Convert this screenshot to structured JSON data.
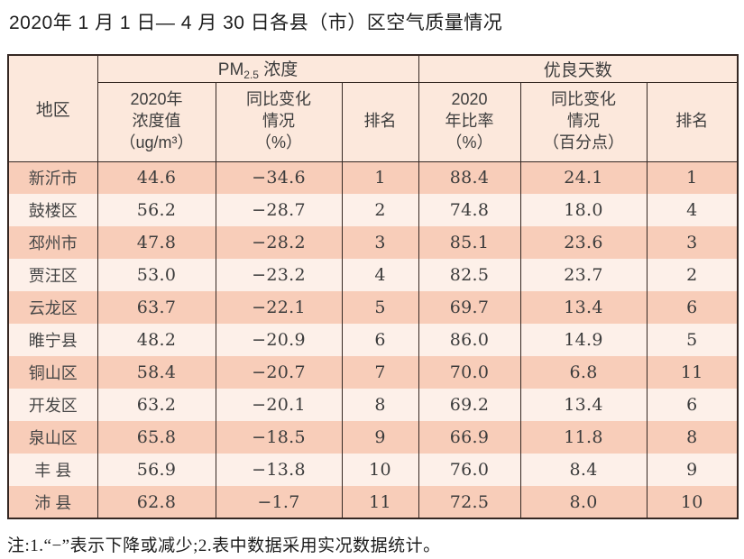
{
  "title": "2020年 1 月 1 日— 4 月 30 日各县（市）区空气质量情况",
  "table": {
    "region_header": "地区",
    "group1": {
      "pm": "PM",
      "pm_sub": "2.5",
      "pm_suffix": " 浓度"
    },
    "group2": "优良天数",
    "subheaders": [
      "2020年\n浓度值\n（ug/m³）",
      "同比变化\n情况\n（%）",
      "排名",
      "2020\n年比率\n（%）",
      "同比变化\n情况\n（百分点）",
      "排名"
    ],
    "rows": [
      {
        "region": "新沂市",
        "values": [
          "44.6",
          "−34.6",
          "1",
          "88.4",
          "24.1",
          "1"
        ]
      },
      {
        "region": "鼓楼区",
        "values": [
          "56.2",
          "−28.7",
          "2",
          "74.8",
          "18.0",
          "4"
        ]
      },
      {
        "region": "邳州市",
        "values": [
          "47.8",
          "−28.2",
          "3",
          "85.1",
          "23.6",
          "3"
        ]
      },
      {
        "region": "贾汪区",
        "values": [
          "53.0",
          "−23.2",
          "4",
          "82.5",
          "23.7",
          "2"
        ]
      },
      {
        "region": "云龙区",
        "values": [
          "63.7",
          "−22.1",
          "5",
          "69.7",
          "13.4",
          "6"
        ]
      },
      {
        "region": "睢宁县",
        "values": [
          "48.2",
          "−20.9",
          "6",
          "86.0",
          "14.9",
          "5"
        ]
      },
      {
        "region": "铜山区",
        "values": [
          "58.4",
          "−20.7",
          "7",
          "70.0",
          "6.8",
          "11"
        ]
      },
      {
        "region": "开发区",
        "values": [
          "63.2",
          "−20.1",
          "8",
          "69.2",
          "13.4",
          "6"
        ]
      },
      {
        "region": "泉山区",
        "values": [
          "65.8",
          "−18.5",
          "9",
          "66.9",
          "11.8",
          "8"
        ]
      },
      {
        "region": "丰 县",
        "values": [
          "56.9",
          "−13.8",
          "10",
          "76.0",
          "8.4",
          "9"
        ]
      },
      {
        "region": "沛 县",
        "values": [
          "62.8",
          "−1.7",
          "11",
          "72.5",
          "8.0",
          "10"
        ]
      }
    ]
  },
  "note": "注:1.“−”表示下降或减少;2.表中数据采用实况数据统计。",
  "colors": {
    "header_bg": "#fce8dc",
    "row_odd_bg": "#f8cdb9",
    "row_even_bg": "#fdf0e9",
    "border": "#352823"
  }
}
